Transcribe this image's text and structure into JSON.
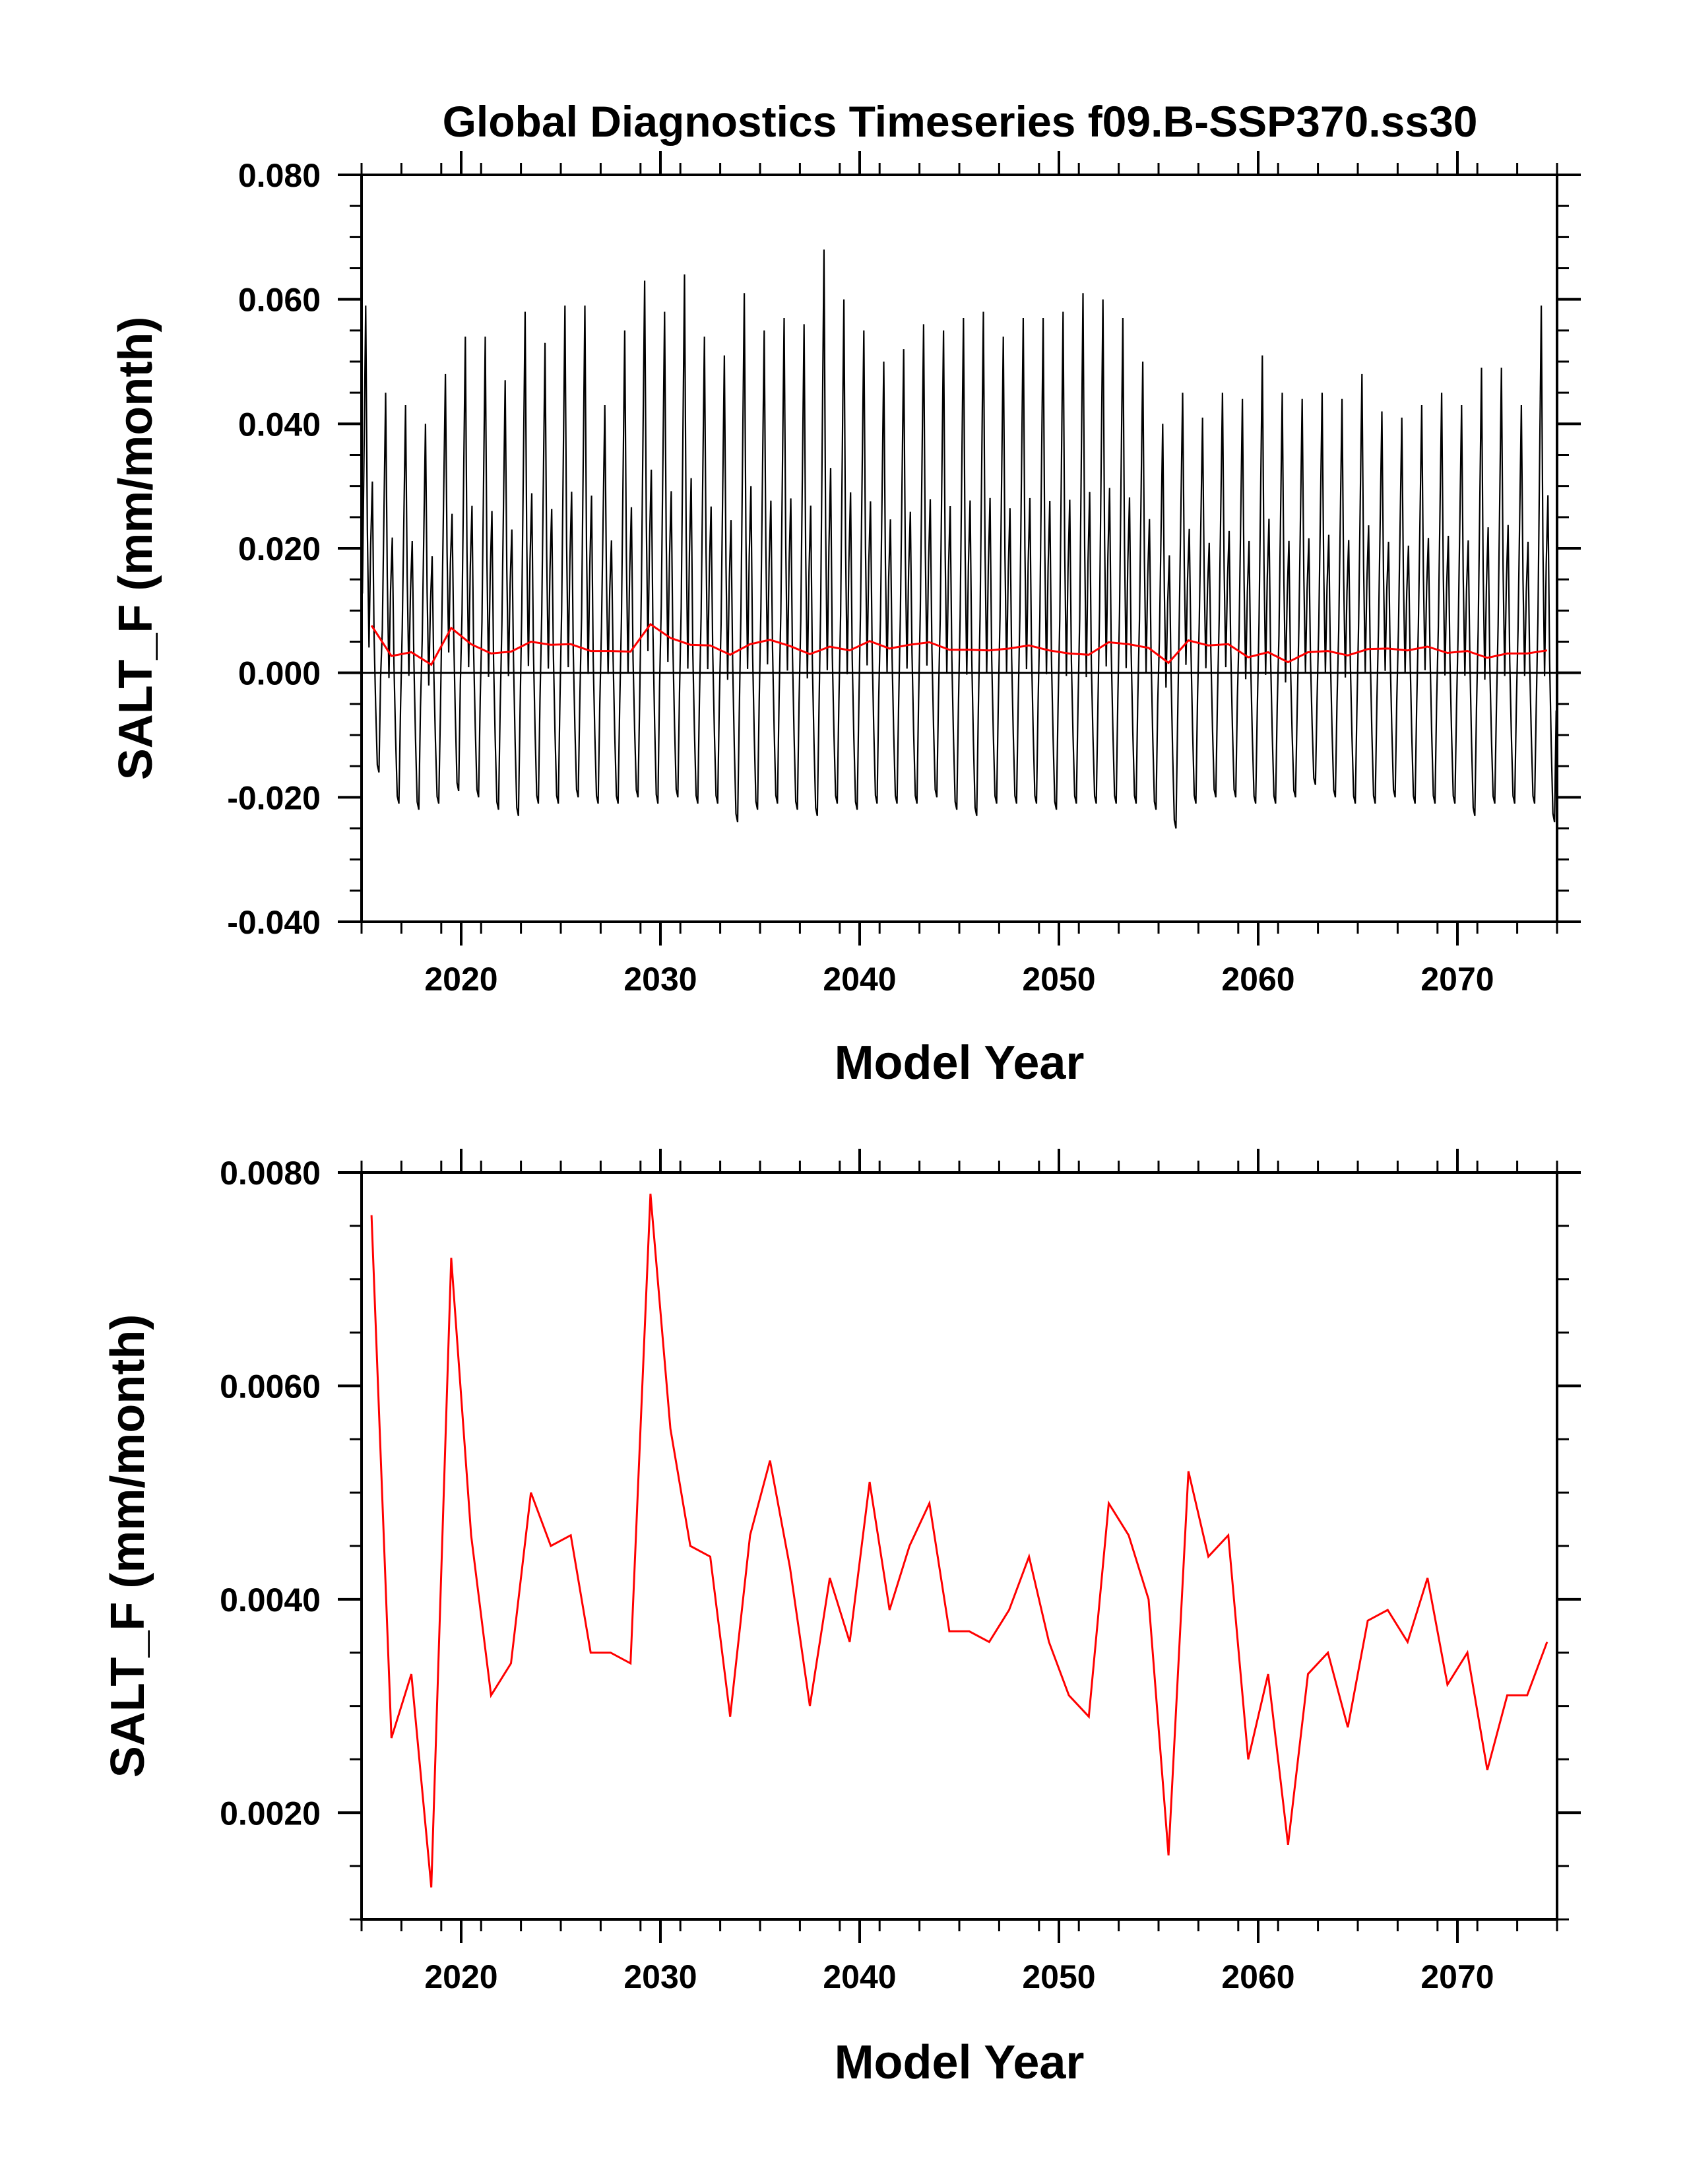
{
  "colors": {
    "monthly": "#000000",
    "annual": "#ff0000",
    "axes": "#000000"
  },
  "chart_data": [
    {
      "type": "line",
      "title": "Global Diagnostics Timeseries f09.B-SSP370.ss30",
      "xlabel": "Model Year",
      "ylabel": "SALT_F (mm/month)",
      "xlim": [
        2015,
        2075
      ],
      "ylim": [
        -0.04,
        0.08
      ],
      "xticks": [
        2020,
        2030,
        2040,
        2050,
        2060,
        2070
      ],
      "xtick_labels": [
        "2020",
        "2030",
        "2040",
        "2050",
        "2060",
        "2070"
      ],
      "yticks": [
        -0.04,
        -0.02,
        0.0,
        0.02,
        0.04,
        0.06,
        0.08
      ],
      "ytick_labels": [
        "-0.040",
        "-0.020",
        "0.000",
        "0.020",
        "0.040",
        "0.060",
        "0.080"
      ],
      "zero_line": true,
      "series": [
        {
          "kind": "monthly",
          "color": "#000000",
          "annual_peaks": [
            0.059,
            0.045,
            0.043,
            0.04,
            0.048,
            0.054,
            0.054,
            0.047,
            0.058,
            0.053,
            0.059,
            0.059,
            0.043,
            0.055,
            0.063,
            0.058,
            0.064,
            0.054,
            0.051,
            0.061,
            0.055,
            0.057,
            0.056,
            0.068,
            0.06,
            0.055,
            0.05,
            0.052,
            0.056,
            0.055,
            0.057,
            0.058,
            0.054,
            0.057,
            0.057,
            0.058,
            0.061,
            0.06,
            0.057,
            0.05,
            0.04,
            0.045,
            0.041,
            0.045,
            0.044,
            0.051,
            0.045,
            0.044,
            0.045,
            0.044,
            0.048,
            0.042,
            0.041,
            0.043,
            0.045,
            0.043,
            0.049,
            0.049,
            0.043,
            0.059
          ],
          "annual_troughs": [
            -0.016,
            -0.021,
            -0.022,
            -0.021,
            -0.019,
            -0.02,
            -0.022,
            -0.023,
            -0.021,
            -0.021,
            -0.02,
            -0.021,
            -0.021,
            -0.02,
            -0.021,
            -0.02,
            -0.021,
            -0.021,
            -0.024,
            -0.022,
            -0.021,
            -0.022,
            -0.023,
            -0.021,
            -0.022,
            -0.021,
            -0.021,
            -0.021,
            -0.02,
            -0.022,
            -0.023,
            -0.021,
            -0.021,
            -0.021,
            -0.022,
            -0.021,
            -0.021,
            -0.021,
            -0.021,
            -0.022,
            -0.025,
            -0.021,
            -0.02,
            -0.02,
            -0.021,
            -0.021,
            -0.02,
            -0.018,
            -0.02,
            -0.021,
            -0.021,
            -0.02,
            -0.021,
            -0.021,
            -0.021,
            -0.023,
            -0.021,
            -0.021,
            -0.021,
            -0.024
          ]
        },
        {
          "kind": "annual",
          "color": "#ff0000",
          "x": [
            2015.5,
            2016.5,
            2017.5,
            2018.5,
            2019.5,
            2020.5,
            2021.5,
            2022.5,
            2023.5,
            2024.5,
            2025.5,
            2026.5,
            2027.5,
            2028.5,
            2029.5,
            2030.5,
            2031.5,
            2032.5,
            2033.5,
            2034.5,
            2035.5,
            2036.5,
            2037.5,
            2038.5,
            2039.5,
            2040.5,
            2041.5,
            2042.5,
            2043.5,
            2044.5,
            2045.5,
            2046.5,
            2047.5,
            2048.5,
            2049.5,
            2050.5,
            2051.5,
            2052.5,
            2053.5,
            2054.5,
            2055.5,
            2056.5,
            2057.5,
            2058.5,
            2059.5,
            2060.5,
            2061.5,
            2062.5,
            2063.5,
            2064.5,
            2065.5,
            2066.5,
            2067.5,
            2068.5,
            2069.5,
            2070.5,
            2071.5,
            2072.5,
            2073.5,
            2074.5
          ],
          "values": [
            0.0076,
            0.0027,
            0.0033,
            0.0013,
            0.0072,
            0.0046,
            0.0031,
            0.0034,
            0.005,
            0.0045,
            0.0046,
            0.0035,
            0.0035,
            0.0034,
            0.0078,
            0.0056,
            0.0045,
            0.0044,
            0.0029,
            0.0046,
            0.0053,
            0.0043,
            0.003,
            0.0042,
            0.0036,
            0.0051,
            0.0039,
            0.0045,
            0.0049,
            0.0037,
            0.0037,
            0.0036,
            0.0039,
            0.0044,
            0.0036,
            0.0031,
            0.0029,
            0.0049,
            0.0046,
            0.004,
            0.0016,
            0.0052,
            0.0044,
            0.0046,
            0.0025,
            0.0033,
            0.0017,
            0.0033,
            0.0035,
            0.0028,
            0.0038,
            0.0039,
            0.0036,
            0.0042,
            0.0032,
            0.0035,
            0.0024,
            0.0031,
            0.0031,
            0.0036
          ]
        }
      ]
    },
    {
      "type": "line",
      "title": "",
      "xlabel": "Model Year",
      "ylabel": "SALT_F (mm/month)",
      "xlim": [
        2015,
        2075
      ],
      "ylim": [
        0.001,
        0.008
      ],
      "xticks": [
        2020,
        2030,
        2040,
        2050,
        2060,
        2070
      ],
      "xtick_labels": [
        "2020",
        "2030",
        "2040",
        "2050",
        "2060",
        "2070"
      ],
      "yticks": [
        0.002,
        0.004,
        0.006,
        0.008
      ],
      "ytick_labels": [
        "0.0020",
        "0.0040",
        "0.0060",
        "0.0080"
      ],
      "series": [
        {
          "kind": "annual",
          "color": "#ff0000",
          "x": [
            2015.5,
            2016.5,
            2017.5,
            2018.5,
            2019.5,
            2020.5,
            2021.5,
            2022.5,
            2023.5,
            2024.5,
            2025.5,
            2026.5,
            2027.5,
            2028.5,
            2029.5,
            2030.5,
            2031.5,
            2032.5,
            2033.5,
            2034.5,
            2035.5,
            2036.5,
            2037.5,
            2038.5,
            2039.5,
            2040.5,
            2041.5,
            2042.5,
            2043.5,
            2044.5,
            2045.5,
            2046.5,
            2047.5,
            2048.5,
            2049.5,
            2050.5,
            2051.5,
            2052.5,
            2053.5,
            2054.5,
            2055.5,
            2056.5,
            2057.5,
            2058.5,
            2059.5,
            2060.5,
            2061.5,
            2062.5,
            2063.5,
            2064.5,
            2065.5,
            2066.5,
            2067.5,
            2068.5,
            2069.5,
            2070.5,
            2071.5,
            2072.5,
            2073.5,
            2074.5
          ],
          "values": [
            0.0076,
            0.0027,
            0.0033,
            0.0013,
            0.0072,
            0.0046,
            0.0031,
            0.0034,
            0.005,
            0.0045,
            0.0046,
            0.0035,
            0.0035,
            0.0034,
            0.0078,
            0.0056,
            0.0045,
            0.0044,
            0.0029,
            0.0046,
            0.0053,
            0.0043,
            0.003,
            0.0042,
            0.0036,
            0.0051,
            0.0039,
            0.0045,
            0.0049,
            0.0037,
            0.0037,
            0.0036,
            0.0039,
            0.0044,
            0.0036,
            0.0031,
            0.0029,
            0.0049,
            0.0046,
            0.004,
            0.0016,
            0.0052,
            0.0044,
            0.0046,
            0.0025,
            0.0033,
            0.0017,
            0.0033,
            0.0035,
            0.0028,
            0.0038,
            0.0039,
            0.0036,
            0.0042,
            0.0032,
            0.0035,
            0.0024,
            0.0031,
            0.0031,
            0.0036
          ]
        }
      ]
    }
  ]
}
